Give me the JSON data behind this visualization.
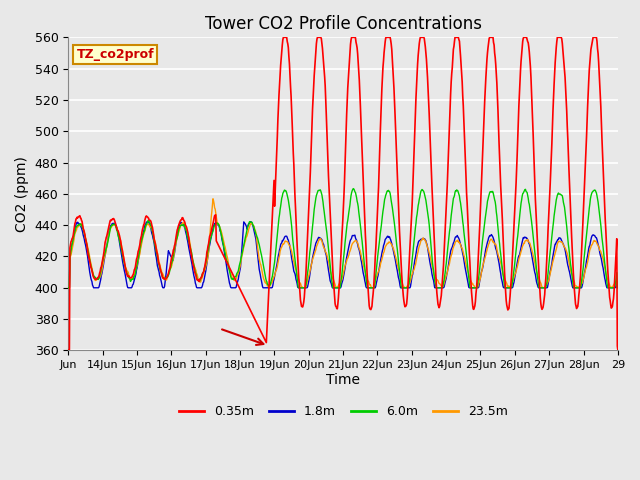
{
  "title": "Tower CO2 Profile Concentrations",
  "xlabel": "Time",
  "ylabel": "CO2 (ppm)",
  "ylim": [
    360,
    560
  ],
  "yticks": [
    360,
    380,
    400,
    420,
    440,
    460,
    480,
    500,
    520,
    540,
    560
  ],
  "background_color": "#e8e8e8",
  "plot_bg_color": "#e8e8e8",
  "grid_color": "#ffffff",
  "annotation_text": "TZ_co2prof",
  "annotation_bg": "#ffffcc",
  "annotation_border": "#cc8800",
  "annotation_text_color": "#cc0000",
  "legend_entries": [
    "0.35m",
    "1.8m",
    "6.0m",
    "23.5m"
  ],
  "legend_colors": [
    "#ff0000",
    "#0000cc",
    "#00cc00",
    "#ff9900"
  ],
  "line_colors": {
    "0.35m": "#ff0000",
    "1.8m": "#0000cc",
    "6.0m": "#00cc00",
    "23.5m": "#ff9900"
  },
  "x_tick_labels": [
    "Jun",
    "14Jun",
    "15Jun",
    "16Jun",
    "17Jun",
    "18Jun",
    "19Jun",
    "20Jun",
    "21Jun",
    "22Jun",
    "23Jun",
    "24Jun",
    "25Jun",
    "26Jun",
    "27Jun",
    "28Jun",
    "29"
  ],
  "start_day": 13,
  "end_day": 29,
  "n_points": 1000
}
